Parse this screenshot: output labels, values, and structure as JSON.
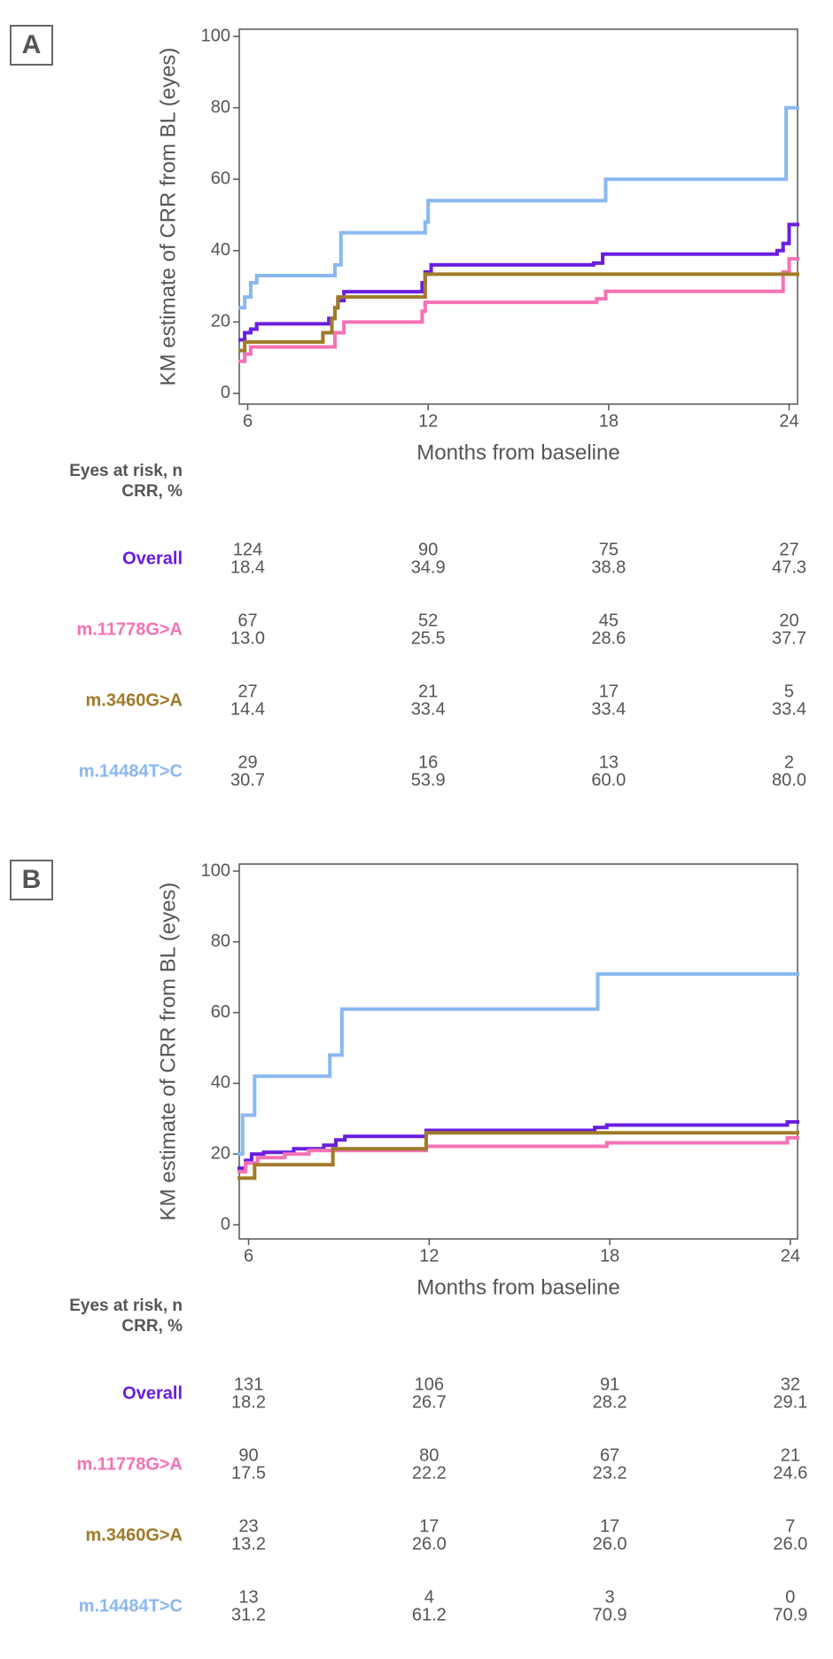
{
  "chart_data": [
    {
      "type": "line",
      "step": true,
      "panel": "A",
      "ylabel": "KM estimate of CRR from BL (eyes)",
      "xlabel": "Months from baseline",
      "xlim": [
        5.72,
        24.28
      ],
      "ylim": [
        -3,
        102
      ],
      "xticks": [
        6,
        12,
        18,
        24
      ],
      "yticks": [
        0,
        20,
        40,
        60,
        80,
        100
      ],
      "series": [
        {
          "name": "Overall",
          "color": "#6a1de0",
          "x": [
            5.75,
            5.9,
            6.1,
            6.3,
            8.7,
            8.9,
            9.0,
            9.2,
            11.8,
            11.9,
            12.1,
            17.5,
            17.8,
            23.6,
            23.8,
            24.0
          ],
          "values": [
            15,
            17,
            18,
            19.5,
            21,
            24,
            26,
            28.5,
            31,
            34,
            36,
            36.5,
            39,
            40,
            42,
            47.3
          ]
        },
        {
          "name": "m.11778G>A",
          "color": "#f472b6",
          "x": [
            5.75,
            5.9,
            6.1,
            8.9,
            9.2,
            11.8,
            11.9,
            17.6,
            17.9,
            23.8,
            24.0
          ],
          "values": [
            9,
            11,
            13,
            17,
            20,
            23,
            25.5,
            26.5,
            28.6,
            34,
            37.7
          ]
        },
        {
          "name": "m.3460G>A",
          "color": "#a07a28",
          "x": [
            5.75,
            5.9,
            8.5,
            8.8,
            8.9,
            9.0,
            11.9
          ],
          "values": [
            12,
            14.4,
            17,
            21,
            24,
            27,
            33.4
          ]
        },
        {
          "name": "m.14484T>C",
          "color": "#8ab8f0",
          "x": [
            5.75,
            5.9,
            6.1,
            6.3,
            8.9,
            9.1,
            11.9,
            12.0,
            17.9,
            23.9
          ],
          "values": [
            24,
            27,
            31,
            33,
            36,
            45,
            48,
            54,
            60,
            80
          ]
        }
      ],
      "risk_table": {
        "header": [
          "Eyes at risk, n",
          "CRR, %"
        ],
        "rows": [
          {
            "n": [
              "124",
              "90",
              "75",
              "27"
            ],
            "crr": [
              "18.4",
              "34.9",
              "38.8",
              "47.3"
            ]
          },
          {
            "n": [
              "67",
              "52",
              "45",
              "20"
            ],
            "crr": [
              "13.0",
              "25.5",
              "28.6",
              "37.7"
            ]
          },
          {
            "n": [
              "27",
              "21",
              "17",
              "5"
            ],
            "crr": [
              "14.4",
              "33.4",
              "33.4",
              "33.4"
            ]
          },
          {
            "n": [
              "29",
              "16",
              "13",
              "2"
            ],
            "crr": [
              "30.7",
              "53.9",
              "60.0",
              "80.0"
            ]
          }
        ]
      }
    },
    {
      "type": "line",
      "step": true,
      "panel": "B",
      "ylabel": "KM estimate of CRR from BL (eyes)",
      "xlabel": "Months from baseline",
      "xlim": [
        5.69,
        24.24
      ],
      "ylim": [
        -4,
        102
      ],
      "xticks": [
        6,
        12,
        18,
        24
      ],
      "yticks": [
        0,
        20,
        40,
        60,
        80,
        100
      ],
      "series": [
        {
          "name": "Overall",
          "color": "#6a1de0",
          "x": [
            5.69,
            5.9,
            6.1,
            6.5,
            7.5,
            8.5,
            8.9,
            9.2,
            11.9,
            17.5,
            17.9,
            23.9
          ],
          "values": [
            16,
            18.2,
            20,
            20.5,
            21.5,
            22.5,
            24,
            25,
            26.7,
            27.5,
            28.2,
            29.1
          ]
        },
        {
          "name": "m.11778G>A",
          "color": "#f472b6",
          "x": [
            5.69,
            5.9,
            6.3,
            7.2,
            8.0,
            11.9,
            17.9,
            23.9
          ],
          "values": [
            15,
            17.5,
            19,
            20,
            21,
            22.2,
            23.2,
            24.6
          ]
        },
        {
          "name": "m.3460G>A",
          "color": "#a07a28",
          "x": [
            5.69,
            6.2,
            8.8,
            11.9
          ],
          "values": [
            13.2,
            17,
            21.5,
            26
          ]
        },
        {
          "name": "m.14484T>C",
          "color": "#8ab8f0",
          "x": [
            5.69,
            5.8,
            6.2,
            8.7,
            9.1,
            17.6
          ],
          "values": [
            20,
            31,
            42,
            48,
            61,
            70.9
          ]
        }
      ],
      "risk_table": {
        "header": [
          "Eyes at risk, n",
          "CRR, %"
        ],
        "rows": [
          {
            "n": [
              "131",
              "106",
              "91",
              "32"
            ],
            "crr": [
              "18.2",
              "26.7",
              "28.2",
              "29.1"
            ]
          },
          {
            "n": [
              "90",
              "80",
              "67",
              "21"
            ],
            "crr": [
              "17.5",
              "22.2",
              "23.2",
              "24.6"
            ]
          },
          {
            "n": [
              "23",
              "17",
              "17",
              "7"
            ],
            "crr": [
              "13.2",
              "26.0",
              "26.0",
              "26.0"
            ]
          },
          {
            "n": [
              "13",
              "4",
              "3",
              "0"
            ],
            "crr": [
              "31.2",
              "61.2",
              "70.9",
              "70.9"
            ]
          }
        ]
      }
    }
  ]
}
